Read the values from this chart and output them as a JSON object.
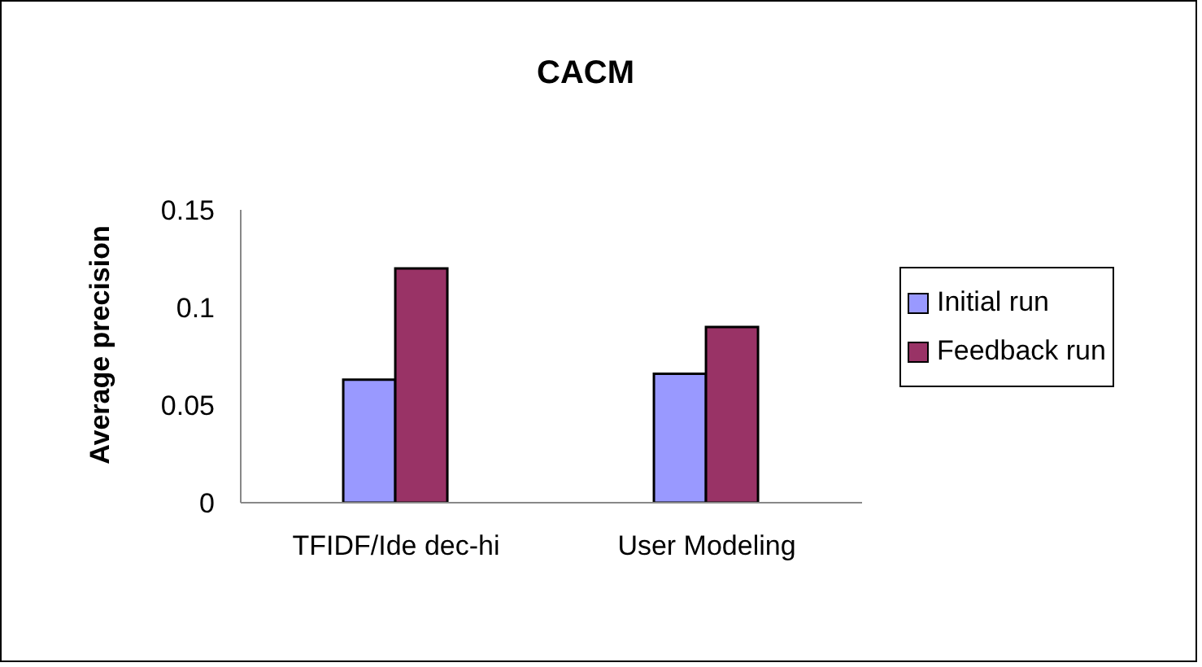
{
  "chart_data": {
    "type": "bar",
    "title": "CACM",
    "ylabel": "Average precision",
    "categories": [
      "TFIDF/Ide dec-hi",
      "User Modeling"
    ],
    "series": [
      {
        "name": "Initial run",
        "color": "#9999ff",
        "values": [
          0.063,
          0.066
        ]
      },
      {
        "name": "Feedback run",
        "color": "#993366",
        "values": [
          0.12,
          0.09
        ]
      }
    ],
    "ylim": [
      0,
      0.15
    ],
    "yticks": [
      0,
      0.05,
      {
        "value": 0.1,
        "label": "0.1"
      },
      0.15
    ],
    "grid": false,
    "legend": "right"
  }
}
